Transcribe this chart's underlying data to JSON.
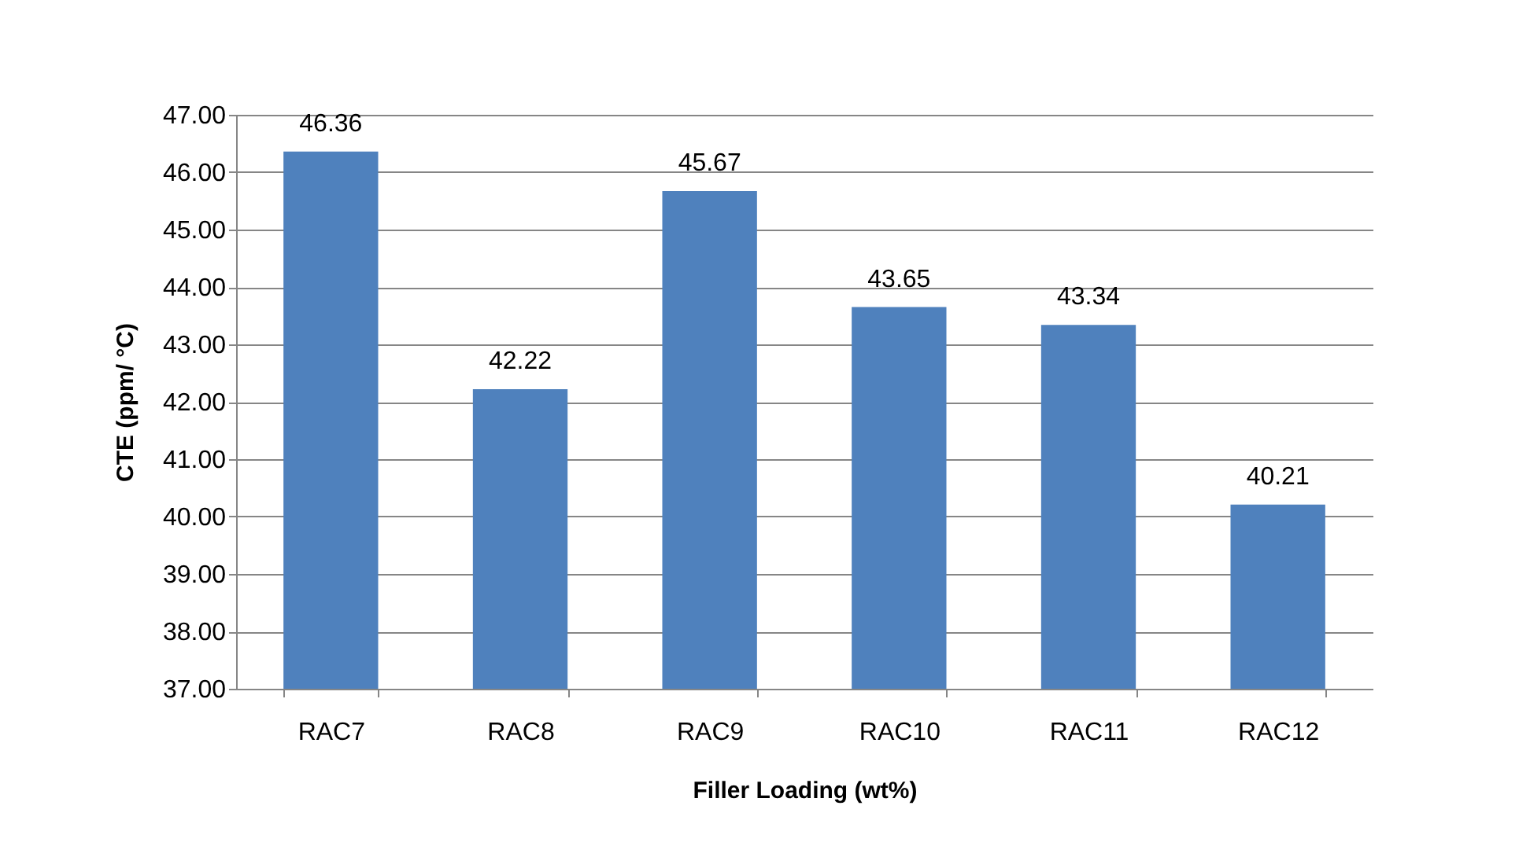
{
  "chart_data": {
    "type": "bar",
    "xlabel": "Filler Loading  (wt%)",
    "ylabel": "CTE  (ppm/ °C)",
    "categories": [
      "RAC7",
      "RAC8",
      "RAC9",
      "RAC10",
      "RAC11",
      "RAC12"
    ],
    "values": [
      46.36,
      42.22,
      45.67,
      43.65,
      43.34,
      40.21
    ],
    "color": "#4f81bd",
    "ylim": [
      37,
      47
    ],
    "yticks": [
      {
        "value": 37,
        "label": "37.00"
      },
      {
        "value": 38,
        "label": "38.00"
      },
      {
        "value": 39,
        "label": "39.00"
      },
      {
        "value": 40,
        "label": "40.00"
      },
      {
        "value": 41,
        "label": "41.00"
      },
      {
        "value": 42,
        "label": "42.00"
      },
      {
        "value": 43,
        "label": "43.00"
      },
      {
        "value": 44,
        "label": "44.00"
      },
      {
        "value": 45,
        "label": "45.00"
      },
      {
        "value": 46,
        "label": "46.00"
      },
      {
        "value": 47,
        "label": "47.00"
      }
    ],
    "grid": "y",
    "data_labels": true
  }
}
